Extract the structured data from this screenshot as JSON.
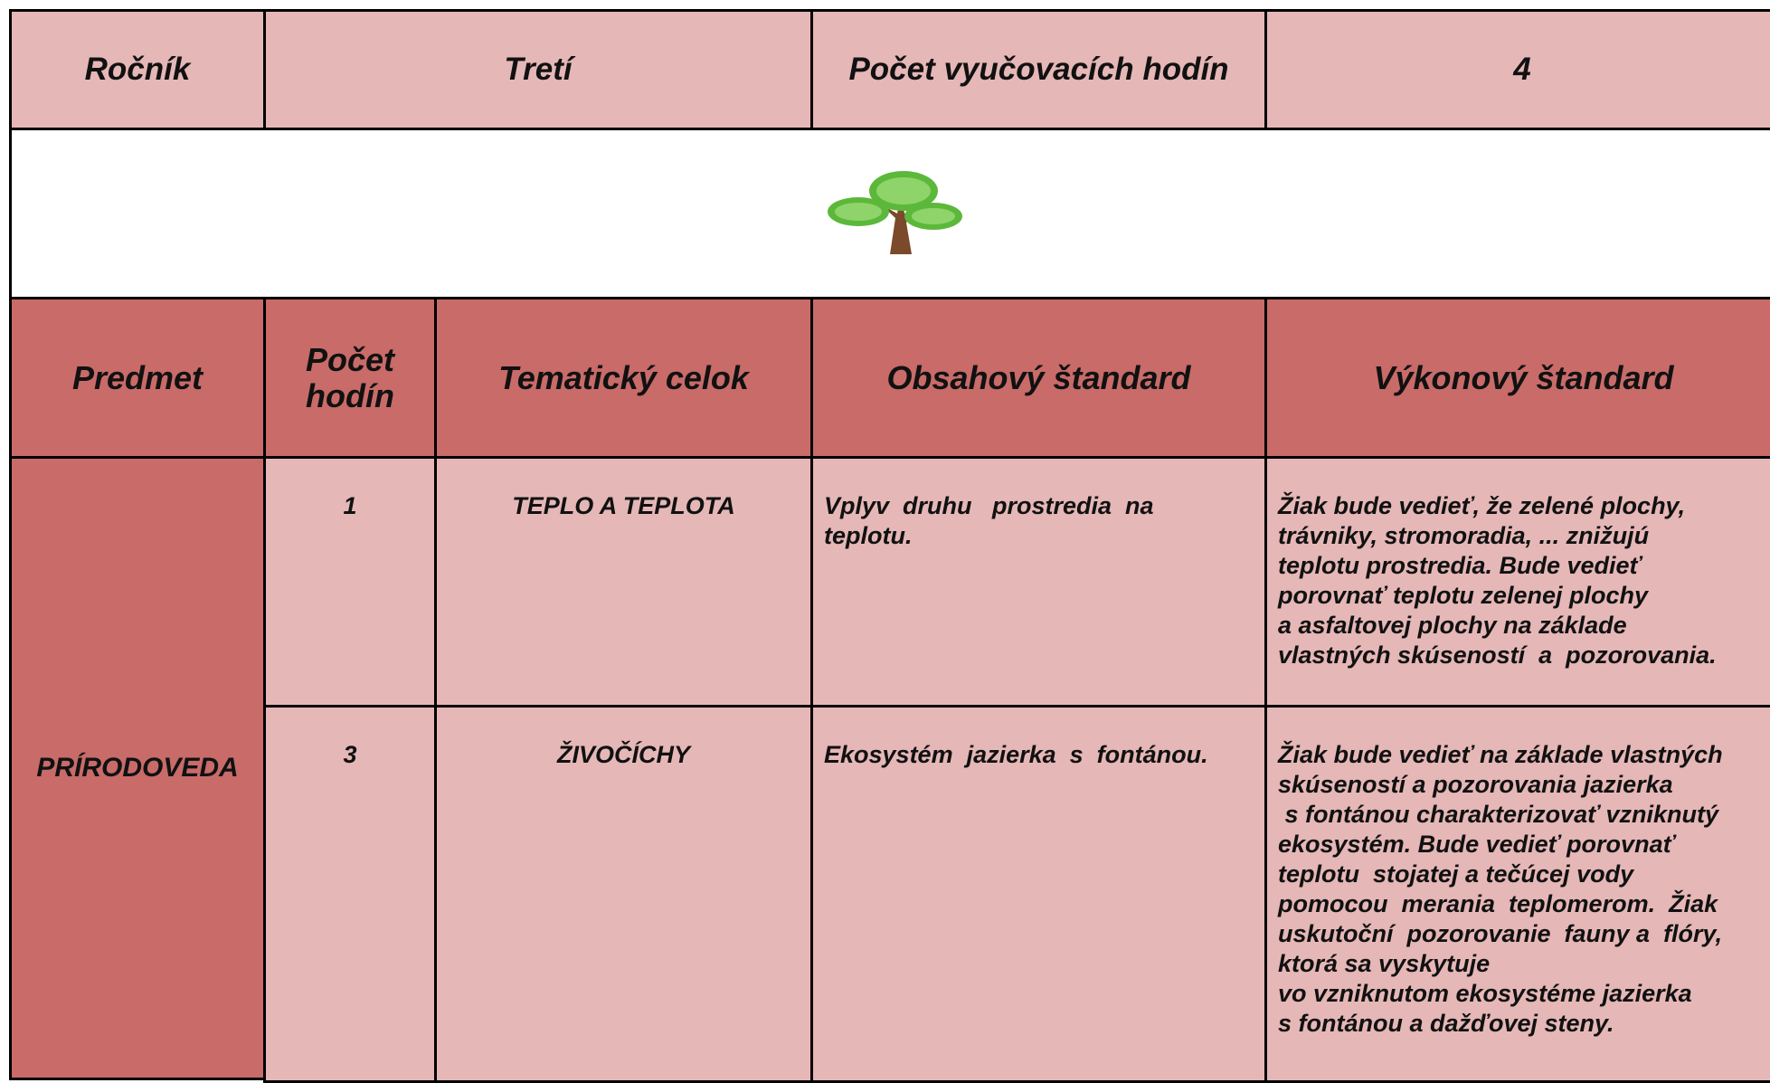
{
  "info_row": {
    "grade_label": "Ročník",
    "grade": "Tretí",
    "hours_label": "Počet vyučovacích hodín",
    "hours": "4"
  },
  "table": {
    "columns": [
      "Predmet",
      "Počet hodín",
      "Tematický celok",
      "Obsahový štandard",
      "Výkonový štandard"
    ],
    "subject": "PRÍRODOVEDA",
    "rows": [
      {
        "hours": "1",
        "topic": "TEPLO A TEPLOTA",
        "content": [
          "Vplyv  druhu   prostredia  na",
          "teplotu."
        ],
        "performance": [
          "Žiak bude vedieť, že zelené plochy,",
          "trávniky, stromoradia, ... znižujú",
          "teplotu prostredia. Bude vedieť",
          "porovnať teplotu zelenej plochy",
          "a asfaltovej plochy na základe",
          "vlastných skúseností  a  pozorovania."
        ]
      },
      {
        "hours": "3",
        "topic": "ŽIVOČÍCHY",
        "content": [
          "Ekosystém  jazierka  s  fontánou."
        ],
        "performance": [
          "Žiak bude vedieť na základe vlastných",
          "skúseností a pozorovania jazierka",
          " s fontánou charakterizovať vzniknutý",
          "ekosystém. Bude vedieť porovnať",
          "teplotu  stojatej a tečúcej vody",
          "pomocou  merania  teplomerom.  Žiak",
          "uskutoční  pozorovanie  fauny a  flóry,",
          "ktorá sa vyskytuje",
          "vo vzniknutom ekosystéme jazierka",
          "s fontánou a dažďovej steny."
        ]
      }
    ]
  }
}
